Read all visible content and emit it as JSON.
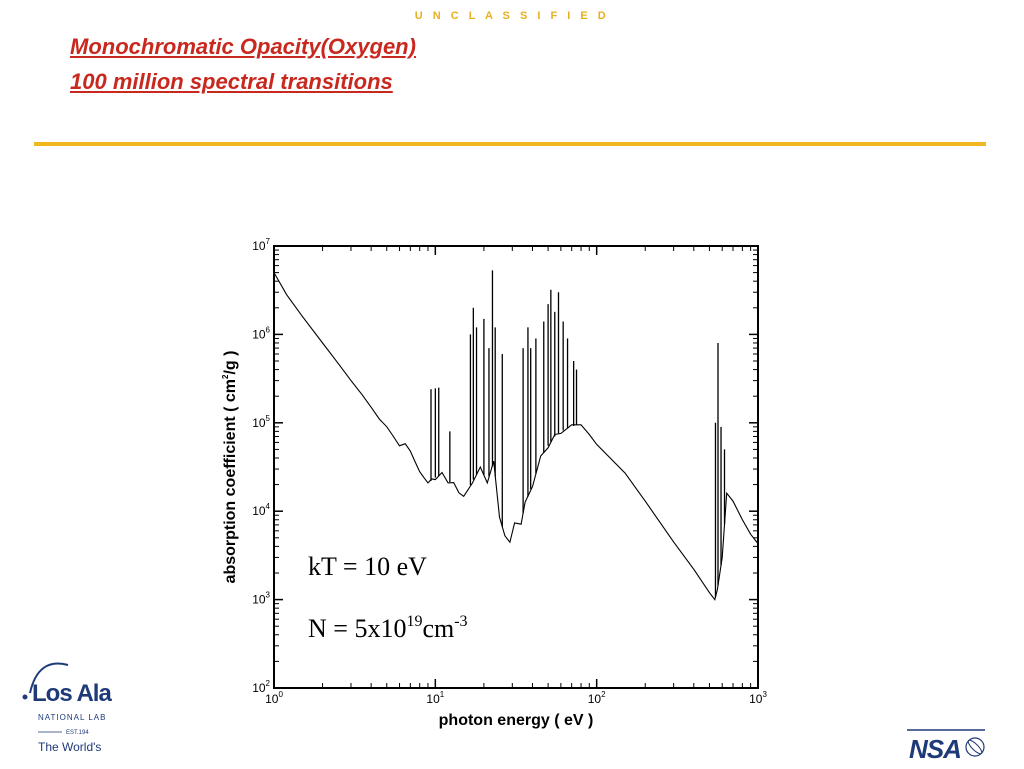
{
  "header": {
    "classification": "U N C L A S S I F I E D",
    "title_line1": "Monochromatic Opacity(Oxygen)",
    "title_line2": "100 million spectral transitions"
  },
  "colors": {
    "title": "#c8281e",
    "rule": "#f2b71c",
    "classification": "#e8b020"
  },
  "chart_data": {
    "type": "line",
    "title": "",
    "xlabel": "photon energy ( eV )",
    "ylabel_parts": [
      "absorption coefficient ( cm",
      "2",
      "/g )"
    ],
    "xscale": "log",
    "yscale": "log",
    "xlim": [
      1,
      1000
    ],
    "ylim": [
      100,
      10000000
    ],
    "grid": false,
    "x_ticks": [
      {
        "value": 1,
        "base": "10",
        "exp": "0"
      },
      {
        "value": 10,
        "base": "10",
        "exp": "1"
      },
      {
        "value": 100,
        "base": "10",
        "exp": "2"
      },
      {
        "value": 1000,
        "base": "10",
        "exp": "3"
      }
    ],
    "y_ticks": [
      {
        "value": 100,
        "base": "10",
        "exp": "2"
      },
      {
        "value": 1000,
        "base": "10",
        "exp": "3"
      },
      {
        "value": 10000,
        "base": "10",
        "exp": "4"
      },
      {
        "value": 100000,
        "base": "10",
        "exp": "5"
      },
      {
        "value": 1000000,
        "base": "10",
        "exp": "6"
      },
      {
        "value": 10000000,
        "base": "10",
        "exp": "7"
      }
    ],
    "annotations": {
      "kt": "kT = 10 eV",
      "n_prefix": "N = 5x10",
      "n_exp": "19",
      "n_unit": "cm",
      "n_unit_exp": "-3"
    },
    "series": [
      {
        "points": [
          [
            1.0,
            5000000
          ],
          [
            1.2,
            2800000
          ],
          [
            1.5,
            1600000
          ],
          [
            2.0,
            800000
          ],
          [
            2.5,
            470000
          ],
          [
            3.0,
            300000
          ],
          [
            3.5,
            210000
          ],
          [
            4.0,
            150000
          ],
          [
            4.5,
            110000
          ],
          [
            5.0,
            90000
          ],
          [
            5.5,
            70000
          ],
          [
            6.0,
            55000
          ],
          [
            6.5,
            58000
          ],
          [
            7.0,
            48000
          ],
          [
            7.5,
            36000
          ],
          [
            8.0,
            28000
          ],
          [
            8.5,
            24000
          ],
          [
            9.0,
            22000
          ],
          [
            9.5,
            22000
          ],
          [
            10.0,
            24000
          ],
          [
            11.0,
            26000
          ],
          [
            12.0,
            22000
          ],
          [
            13.0,
            20000
          ],
          [
            14.0,
            17000
          ],
          [
            15.0,
            14000
          ],
          [
            17.0,
            22000
          ],
          [
            19.0,
            30000
          ],
          [
            21.0,
            22000
          ],
          [
            23.0,
            35000
          ],
          [
            25.0,
            9000
          ],
          [
            27.0,
            5000
          ],
          [
            29.0,
            4700
          ],
          [
            31.0,
            7000
          ],
          [
            34.0,
            7500
          ],
          [
            36.0,
            12000
          ],
          [
            40.0,
            20000
          ],
          [
            45.0,
            40000
          ],
          [
            50.0,
            55000
          ],
          [
            55.0,
            70000
          ],
          [
            60.0,
            80000
          ],
          [
            70.0,
            90000
          ],
          [
            80.0,
            100000
          ],
          [
            90.0,
            70000
          ],
          [
            100.0,
            60000
          ],
          [
            150.0,
            27000
          ],
          [
            200.0,
            13000
          ],
          [
            300.0,
            4500
          ],
          [
            400.0,
            2200
          ],
          [
            500.0,
            1200
          ],
          [
            540.0,
            1000
          ],
          [
            560.0,
            1300
          ],
          [
            600.0,
            3000
          ],
          [
            640.0,
            16000
          ],
          [
            700.0,
            13000
          ],
          [
            800.0,
            8000
          ],
          [
            900.0,
            5500
          ],
          [
            1000.0,
            4300
          ]
        ]
      }
    ],
    "spikes": [
      [
        9.4,
        240000
      ],
      [
        10.0,
        245000
      ],
      [
        10.5,
        250000
      ],
      [
        12.3,
        80000
      ],
      [
        16.5,
        1000000
      ],
      [
        17.2,
        2000000
      ],
      [
        18.0,
        1200000
      ],
      [
        20.0,
        1500000
      ],
      [
        21.5,
        700000
      ],
      [
        22.6,
        5300000
      ],
      [
        23.5,
        1200000
      ],
      [
        26.0,
        600000
      ],
      [
        35.0,
        700000
      ],
      [
        37.5,
        1200000
      ],
      [
        39.0,
        700000
      ],
      [
        42.0,
        900000
      ],
      [
        47.0,
        1400000
      ],
      [
        50.0,
        2200000
      ],
      [
        52.0,
        3200000
      ],
      [
        55.0,
        1800000
      ],
      [
        58.0,
        3000000
      ],
      [
        62.0,
        1400000
      ],
      [
        66.0,
        900000
      ],
      [
        72.0,
        500000
      ],
      [
        75.0,
        400000
      ],
      [
        545.0,
        100000
      ],
      [
        565.0,
        800000
      ],
      [
        590.0,
        90000
      ],
      [
        620.0,
        50000
      ]
    ]
  },
  "logos": {
    "lanl_name": "Los Ala",
    "lanl_sub": "NATIONAL LAB",
    "lanl_est": "EST.194",
    "lanl_tagline": "The World's",
    "nsa": "NSA"
  }
}
